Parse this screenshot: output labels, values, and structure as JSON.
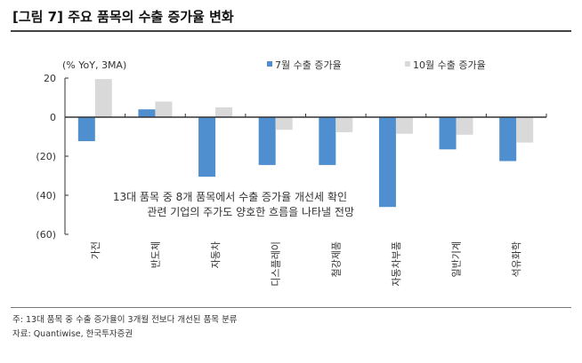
{
  "title": "[그림 7] 주요 품목의 수출 증가율 변화",
  "notes": [
    "주: 13대 품목 중 수출 증가율이 3개월 전보다 개선된 품목 분류",
    "자료: Quantiwise, 한국투자증권"
  ],
  "chart_data": {
    "type": "bar",
    "unit_label": "(% YoY, 3MA)",
    "categories": [
      "가전",
      "반도체",
      "자동차",
      "디스플레이",
      "철강제품",
      "자동차부품",
      "일반기계",
      "석유화학"
    ],
    "series": [
      {
        "name": "7월 수출 증가율",
        "color": "#4f8fcf",
        "values": [
          -12.3,
          4,
          -30.5,
          -24.5,
          -24.5,
          -46,
          -16.5,
          -22.5
        ]
      },
      {
        "name": "10월 수출 증가율",
        "color": "#d9d9d9",
        "values": [
          19.5,
          8,
          5,
          -6.5,
          -7.7,
          -8.5,
          -9,
          -13
        ]
      }
    ],
    "ylim": [
      -60,
      20
    ],
    "yticks": [
      20,
      0,
      -20,
      -40,
      -60
    ],
    "ytick_labels": [
      "20",
      "0",
      "(20)",
      "(40)",
      "(60)"
    ],
    "legend_position": "top",
    "annotation": [
      "13대 품목 중 8개 품목에서 수출 증가율 개선세 확인",
      "관련 기업의 주가도 양호한 흐름을 나타낼 전망"
    ]
  }
}
